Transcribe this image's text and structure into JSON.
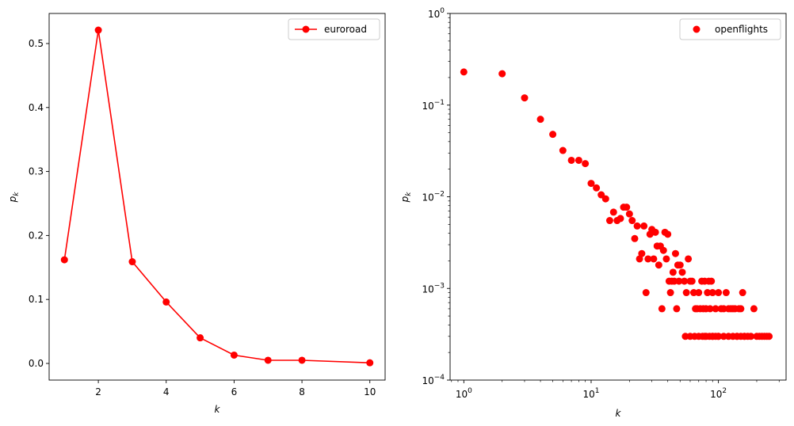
{
  "figure": {
    "background": "#ffffff",
    "marker_color": "#ff0000"
  },
  "chart_data": [
    {
      "type": "line",
      "title": "",
      "xlabel": "k",
      "ylabel": "p_k",
      "xlim": [
        0.55,
        10.45
      ],
      "ylim": [
        -0.026,
        0.547
      ],
      "xticks": [
        2,
        4,
        6,
        8,
        10
      ],
      "xtick_labels": [
        "2",
        "4",
        "6",
        "8",
        "10"
      ],
      "yticks": [
        0.0,
        0.1,
        0.2,
        0.3,
        0.4,
        0.5
      ],
      "ytick_labels": [
        "0.0",
        "0.1",
        "0.2",
        "0.3",
        "0.4",
        "0.5"
      ],
      "grid": false,
      "legend_position": "top-right",
      "series": [
        {
          "name": "euroroad",
          "color": "#ff0000",
          "style": "line-with-circle-markers",
          "x": [
            1,
            2,
            3,
            4,
            5,
            6,
            7,
            8,
            10
          ],
          "y": [
            0.162,
            0.521,
            0.159,
            0.096,
            0.04,
            0.013,
            0.005,
            0.005,
            0.001
          ]
        }
      ]
    },
    {
      "type": "scatter",
      "title": "",
      "xlabel": "k",
      "ylabel": "p_k",
      "xscale": "log",
      "yscale": "log",
      "xlim": [
        0.78,
        340
      ],
      "ylim": [
        0.0001,
        1
      ],
      "xticks": [
        1,
        10,
        100
      ],
      "xtick_labels": [
        "10^0",
        "10^1",
        "10^2"
      ],
      "yticks": [
        0.0001,
        0.001,
        0.01,
        0.1,
        1
      ],
      "ytick_labels": [
        "10^-4",
        "10^-3",
        "10^-2",
        "10^-1",
        "10^0"
      ],
      "grid": false,
      "legend_position": "top-right",
      "series": [
        {
          "name": "openflights",
          "color": "#ff0000",
          "style": "circle-markers",
          "x": [
            1,
            2,
            3,
            4,
            5,
            6,
            7,
            8,
            9,
            10,
            11,
            12,
            13,
            14,
            15,
            16,
            17,
            18,
            19,
            20,
            21,
            22,
            23,
            24,
            25,
            26,
            27,
            28,
            29,
            30,
            31,
            32,
            33,
            34,
            35,
            36,
            37,
            38,
            39,
            40,
            41,
            42,
            43,
            44,
            45,
            46,
            47,
            48,
            49,
            50,
            52,
            54,
            56,
            58,
            60,
            62,
            64,
            66,
            68,
            70,
            72,
            74,
            76,
            78,
            80,
            82,
            84,
            86,
            88,
            90,
            95,
            100,
            105,
            110,
            115,
            120,
            125,
            130,
            135,
            140,
            145,
            150,
            155,
            160,
            170,
            180,
            190,
            200,
            210,
            220,
            230,
            240,
            250,
            78,
            90,
            100,
            110,
            120,
            130,
            140,
            150,
            160,
            55,
            60,
            65,
            70,
            75,
            80,
            85,
            90,
            95,
            100
          ],
          "y": [
            0.23,
            0.22,
            0.12,
            0.07,
            0.048,
            0.032,
            0.025,
            0.025,
            0.023,
            0.014,
            0.0125,
            0.0105,
            0.0095,
            0.0055,
            0.0068,
            0.0055,
            0.0058,
            0.0077,
            0.0077,
            0.0065,
            0.0055,
            0.0035,
            0.0048,
            0.0021,
            0.0024,
            0.0048,
            0.0009,
            0.0021,
            0.0039,
            0.0044,
            0.0021,
            0.0041,
            0.0029,
            0.0018,
            0.0029,
            0.0006,
            0.0026,
            0.0041,
            0.0021,
            0.0039,
            0.0012,
            0.0009,
            0.0012,
            0.0015,
            0.0012,
            0.0024,
            0.0006,
            0.0018,
            0.0012,
            0.0018,
            0.0015,
            0.0012,
            0.0009,
            0.0021,
            0.0012,
            0.0012,
            0.0009,
            0.0006,
            0.0006,
            0.0009,
            0.0006,
            0.0012,
            0.0006,
            0.0012,
            0.0006,
            0.0009,
            0.0012,
            0.0006,
            0.0012,
            0.0009,
            0.0006,
            0.0009,
            0.0006,
            0.0006,
            0.0009,
            0.0006,
            0.0006,
            0.0006,
            0.0006,
            0.0003,
            0.0006,
            0.0006,
            0.0009,
            0.0003,
            0.0003,
            0.0003,
            0.0006,
            0.0003,
            0.0003,
            0.0003,
            0.0003,
            0.0003,
            0.0003,
            0.0003,
            0.0003,
            0.0003,
            0.0003,
            0.0003,
            0.0003,
            0.0003,
            0.0003,
            0.0003,
            0.0003,
            0.0003,
            0.0003,
            0.0003,
            0.0003,
            0.0003,
            0.0003,
            0.0003,
            0.0003,
            0.0003
          ]
        }
      ]
    }
  ]
}
